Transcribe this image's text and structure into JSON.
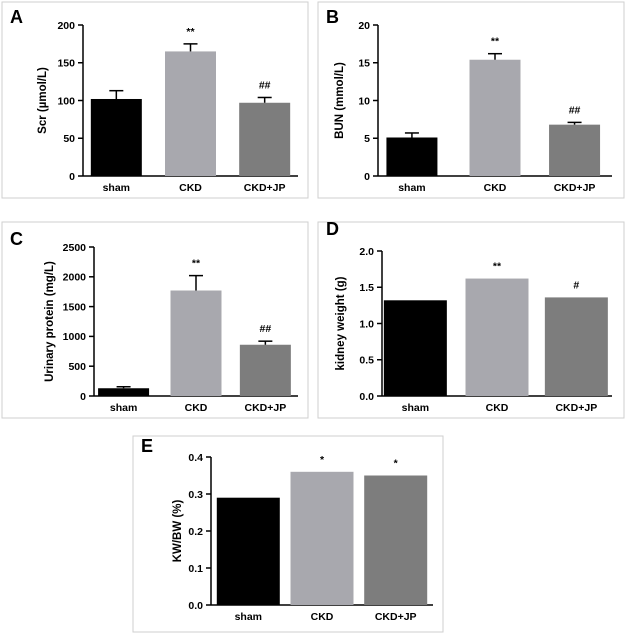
{
  "chart_data": [
    {
      "panel": "A",
      "type": "bar",
      "ylabel": "Scr (µmol/L)",
      "ylim": [
        0,
        200
      ],
      "yticks": [
        0,
        50,
        100,
        150,
        200
      ],
      "categories": [
        "sham",
        "CKD",
        "CKD+JP"
      ],
      "values": [
        102,
        165,
        97
      ],
      "errors": [
        11,
        10,
        7
      ],
      "significance": [
        "",
        "**",
        "##"
      ],
      "colors": [
        "#000000",
        "#a8a8ae",
        "#7d7d7d"
      ]
    },
    {
      "panel": "B",
      "type": "bar",
      "ylabel": "BUN (mmol/L)",
      "ylim": [
        0,
        20
      ],
      "yticks": [
        0,
        5,
        10,
        15,
        20
      ],
      "categories": [
        "sham",
        "CKD",
        "CKD+JP"
      ],
      "values": [
        5.1,
        15.4,
        6.8
      ],
      "errors": [
        0.6,
        0.8,
        0.3
      ],
      "significance": [
        "",
        "**",
        "##"
      ],
      "colors": [
        "#000000",
        "#a8a8ae",
        "#7d7d7d"
      ]
    },
    {
      "panel": "C",
      "type": "bar",
      "ylabel": "Urinary protein (mg/L)",
      "ylim": [
        0,
        2500
      ],
      "yticks": [
        0,
        500,
        1000,
        1500,
        2000,
        2500
      ],
      "categories": [
        "sham",
        "CKD",
        "CKD+JP"
      ],
      "values": [
        130,
        1770,
        860
      ],
      "errors": [
        25,
        250,
        60
      ],
      "significance": [
        "",
        "**",
        "##"
      ],
      "colors": [
        "#000000",
        "#a8a8ae",
        "#7d7d7d"
      ]
    },
    {
      "panel": "D",
      "type": "bar",
      "ylabel": "kidney weight (g)",
      "ylim": [
        0,
        2.0
      ],
      "yticks": [
        "0.0",
        "0.5",
        "1.0",
        "1.5",
        "2.0"
      ],
      "categories": [
        "sham",
        "CKD",
        "CKD+JP"
      ],
      "values": [
        1.32,
        1.62,
        1.36
      ],
      "errors": [
        0,
        0,
        0
      ],
      "significance": [
        "",
        "**",
        "#"
      ],
      "colors": [
        "#000000",
        "#a8a8ae",
        "#7d7d7d"
      ]
    },
    {
      "panel": "E",
      "type": "bar",
      "ylabel": "KW/BW (%)",
      "ylim": [
        0,
        0.4
      ],
      "yticks": [
        "0.0",
        "0.1",
        "0.2",
        "0.3",
        "0.4"
      ],
      "categories": [
        "sham",
        "CKD",
        "CKD+JP"
      ],
      "values": [
        0.29,
        0.36,
        0.35
      ],
      "errors": [
        0,
        0,
        0
      ],
      "significance": [
        "",
        "*",
        "*"
      ],
      "colors": [
        "#000000",
        "#a8a8ae",
        "#7d7d7d"
      ]
    }
  ]
}
